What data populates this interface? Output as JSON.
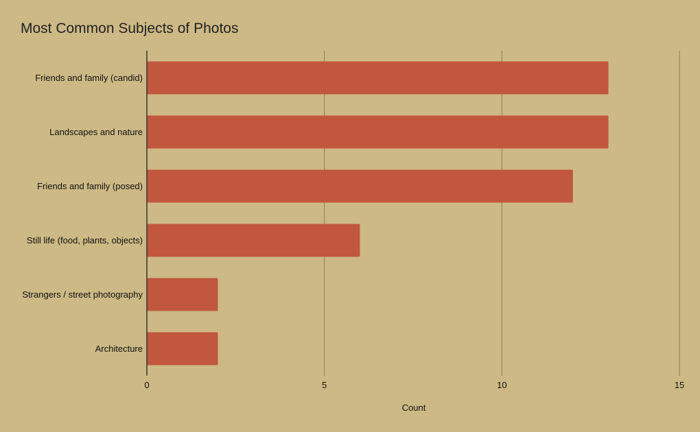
{
  "chart_data": {
    "type": "bar",
    "orientation": "horizontal",
    "title": "Most Common Subjects of Photos",
    "xlabel": "Count",
    "ylabel": "",
    "categories": [
      "Friends and family (candid)",
      "Landscapes and nature",
      "Friends and family (posed)",
      "Still life (food, plants, objects)",
      "Strangers / street photography",
      "Architecture"
    ],
    "values": [
      13,
      13,
      12,
      6,
      2,
      2
    ],
    "xlim": [
      0,
      15
    ],
    "xticks": [
      0,
      5,
      10,
      15
    ],
    "grid": "vertical",
    "legend": "none",
    "colors": {
      "bar": "#c0573e",
      "background": "#cdb985",
      "gridline": "#8c7d5e",
      "axis": "#333333"
    }
  }
}
